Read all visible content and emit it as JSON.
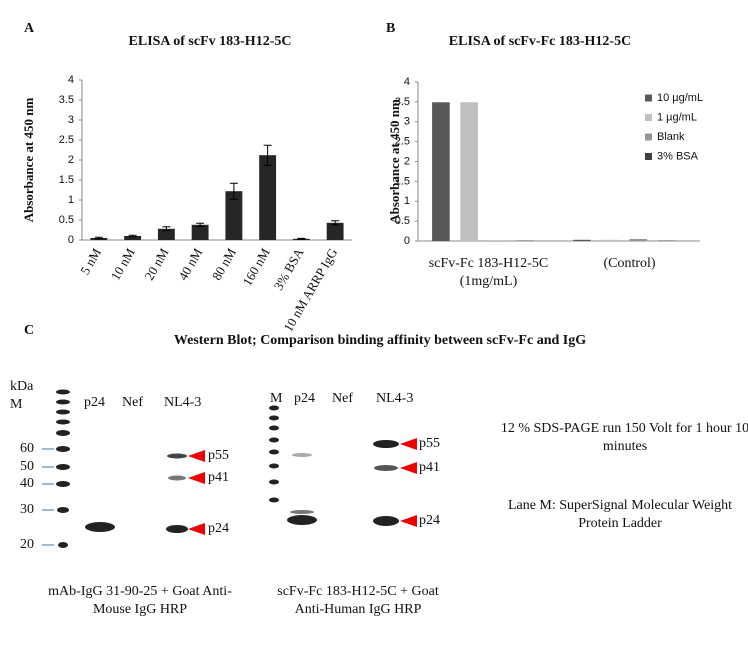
{
  "chart_data": [
    {
      "type": "bar",
      "panel_label": "A",
      "title": "ELISA of scFv 183-H12-5C",
      "y_label": "Absorbance at 450 nm",
      "categories": [
        "5 nM",
        "10 nM",
        "20 nM",
        "40 nM",
        "80 nM",
        "160 nM",
        "3% BSA",
        "10 nM ARRP IgG"
      ],
      "values": [
        0.05,
        0.1,
        0.28,
        0.38,
        1.22,
        2.12,
        0.03,
        0.43
      ],
      "errors": [
        0.02,
        0.02,
        0.05,
        0.04,
        0.2,
        0.25,
        0.01,
        0.05
      ],
      "color": "#262626",
      "ylim": [
        0,
        4
      ],
      "yticks": [
        0,
        0.5,
        1,
        1.5,
        2,
        2.5,
        3,
        3.5,
        4
      ]
    },
    {
      "type": "bar",
      "panel_label": "B",
      "title": "ELISA of scFv-Fc 183-H12-5C",
      "y_label": "Absorbance at 450 nm",
      "categories": [
        "scFv-Fc 183-H12-5C (1mg/mL)",
        "(Control)"
      ],
      "series": [
        {
          "name": "10 µg/mL",
          "color": "#595959",
          "values": [
            3.49,
            0.03
          ]
        },
        {
          "name": "1 µg/mL",
          "color": "#bfbfbf",
          "values": [
            3.49,
            0.03
          ]
        },
        {
          "name": "Blank",
          "color": "#969696",
          "values": [
            0.01,
            0.05
          ]
        },
        {
          "name": "3% BSA",
          "color": "#404040",
          "values": [
            0.01,
            0.01
          ]
        }
      ],
      "ylim": [
        0,
        4
      ],
      "yticks": [
        0,
        0.5,
        1,
        1.5,
        2,
        2.5,
        3,
        3.5,
        4
      ],
      "legend": "top-right"
    }
  ],
  "western_blot": {
    "panel_label": "C",
    "title": "Western Blot; Comparison binding affinity between scFv-Fc and IgG",
    "left_blot": {
      "kda_label": "kDa",
      "ladder_label": "M",
      "markers": [
        "60",
        "50",
        "40",
        "30",
        "20"
      ],
      "lanes": [
        "p24",
        "Nef",
        "NL4-3"
      ],
      "bands": [
        "p55",
        "p41",
        "p24"
      ],
      "caption": "mAb-IgG 31-90-25 + Goat Anti-Mouse IgG HRP"
    },
    "right_blot": {
      "lanes": [
        "M",
        "p24",
        "Nef",
        "NL4-3"
      ],
      "bands": [
        "p55",
        "p41",
        "p24"
      ],
      "caption": "scFv-Fc 183-H12-5C + Goat Anti-Human IgG HRP"
    },
    "notes": [
      "12 % SDS-PAGE run 150 Volt for 1 hour 10 minutes",
      "Lane M: SuperSignal Molecular Weight Protein Ladder"
    ]
  }
}
